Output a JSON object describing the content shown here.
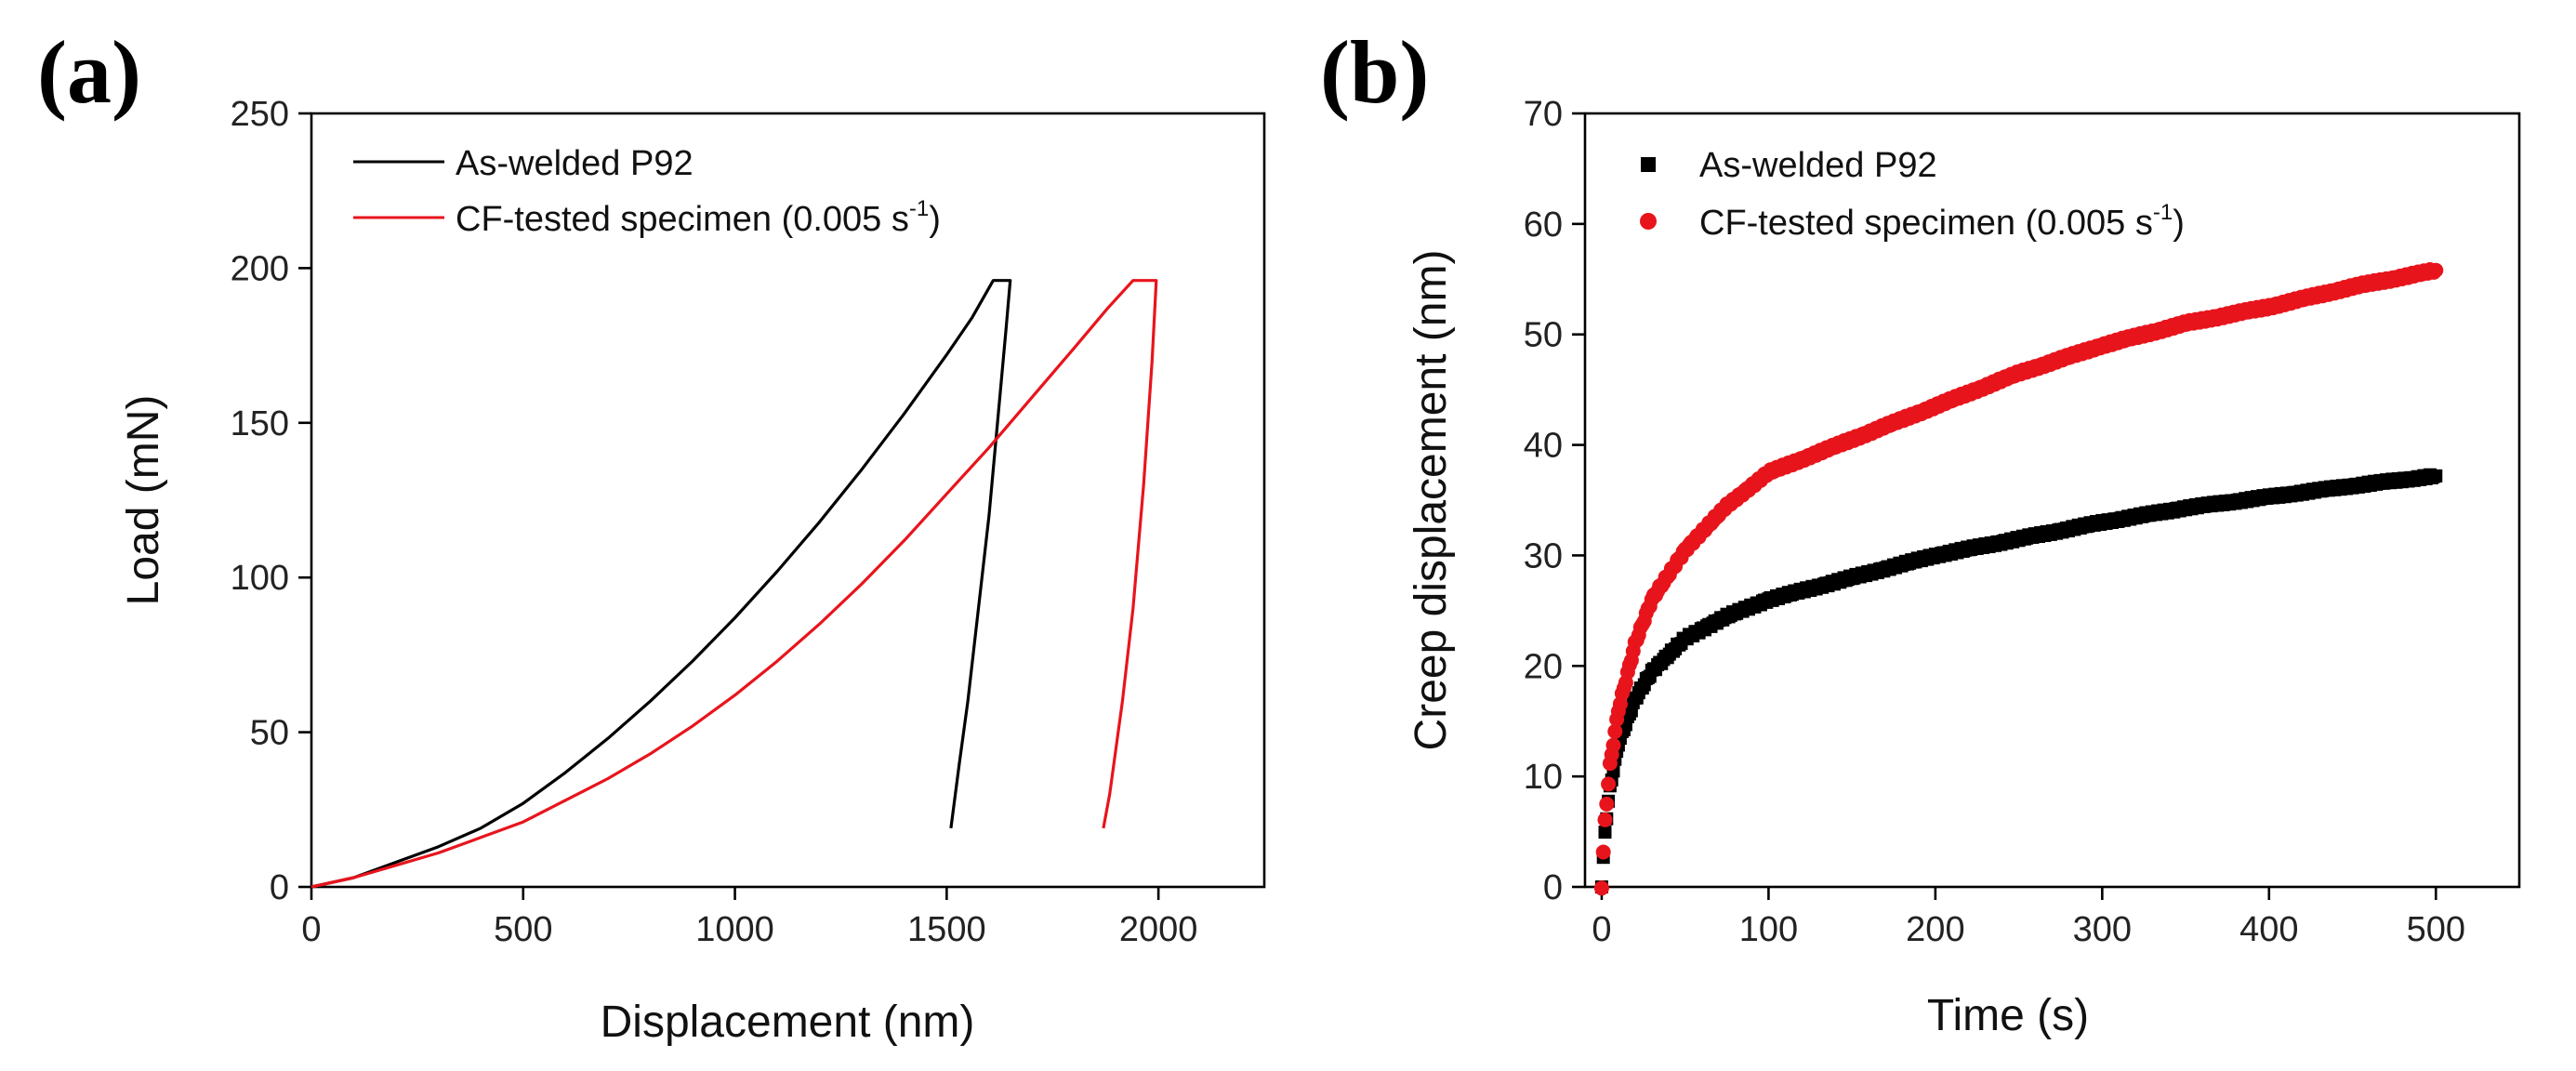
{
  "chart_data": [
    {
      "panel": "(a)",
      "type": "line",
      "title": "",
      "xlabel": "Displacement (nm)",
      "ylabel": "Load (mN)",
      "xlim": [
        0,
        2250
      ],
      "ylim": [
        0,
        250
      ],
      "xticks": [
        0,
        500,
        1000,
        1500,
        2000
      ],
      "yticks": [
        0,
        50,
        100,
        150,
        200,
        250
      ],
      "grid": false,
      "legend_position": "top-left",
      "series": [
        {
          "name": "As-welded P92",
          "color": "#000000",
          "points": [
            [
              0,
              0
            ],
            [
              100,
              3
            ],
            [
              200,
              8
            ],
            [
              300,
              13
            ],
            [
              400,
              19
            ],
            [
              500,
              27
            ],
            [
              600,
              37
            ],
            [
              700,
              48
            ],
            [
              800,
              60
            ],
            [
              900,
              73
            ],
            [
              1000,
              87
            ],
            [
              1100,
              102
            ],
            [
              1200,
              118
            ],
            [
              1300,
              135
            ],
            [
              1400,
              153
            ],
            [
              1500,
              172
            ],
            [
              1560,
              184
            ],
            [
              1610,
              196
            ],
            [
              1650,
              196
            ],
            [
              1640,
              180
            ],
            [
              1620,
              150
            ],
            [
              1600,
              120
            ],
            [
              1575,
              90
            ],
            [
              1550,
              60
            ],
            [
              1530,
              40
            ],
            [
              1510,
              19
            ]
          ]
        },
        {
          "name": "CF-tested specimen (0.005 s",
          "name_sup": "-1",
          "name_suffix": ")",
          "color": "#e8141c",
          "points": [
            [
              0,
              0
            ],
            [
              100,
              3
            ],
            [
              200,
              7
            ],
            [
              300,
              11
            ],
            [
              400,
              16
            ],
            [
              500,
              21
            ],
            [
              600,
              28
            ],
            [
              700,
              35
            ],
            [
              800,
              43
            ],
            [
              900,
              52
            ],
            [
              1000,
              62
            ],
            [
              1100,
              73
            ],
            [
              1200,
              85
            ],
            [
              1300,
              98
            ],
            [
              1400,
              112
            ],
            [
              1500,
              127
            ],
            [
              1600,
              142
            ],
            [
              1700,
              158
            ],
            [
              1800,
              174
            ],
            [
              1880,
              187
            ],
            [
              1940,
              196
            ],
            [
              1995,
              196
            ],
            [
              1985,
              170
            ],
            [
              1965,
              130
            ],
            [
              1940,
              90
            ],
            [
              1915,
              60
            ],
            [
              1885,
              30
            ],
            [
              1870,
              19
            ]
          ]
        }
      ]
    },
    {
      "panel": "(b)",
      "type": "scatter",
      "title": "",
      "xlabel": "Time (s)",
      "ylabel": "Creep displacement (nm)",
      "xlim": [
        -10,
        550
      ],
      "ylim": [
        0,
        70
      ],
      "xticks": [
        0,
        100,
        200,
        300,
        400,
        500
      ],
      "yticks": [
        0,
        10,
        20,
        30,
        40,
        50,
        60,
        70
      ],
      "grid": false,
      "legend_position": "top-left",
      "series": [
        {
          "name": "As-welded P92",
          "color": "#000000",
          "marker": "square",
          "points": [
            [
              0,
              0
            ],
            [
              2,
              5
            ],
            [
              5,
              9
            ],
            [
              10,
              13
            ],
            [
              20,
              17
            ],
            [
              30,
              19.5
            ],
            [
              50,
              22.5
            ],
            [
              75,
              24.5
            ],
            [
              100,
              26
            ],
            [
              125,
              27
            ],
            [
              150,
              28
            ],
            [
              200,
              30
            ],
            [
              250,
              31.5
            ],
            [
              300,
              33
            ],
            [
              350,
              34.3
            ],
            [
              400,
              35.3
            ],
            [
              450,
              36.3
            ],
            [
              500,
              37.2
            ]
          ]
        },
        {
          "name": "CF-tested specimen (0.005 s",
          "name_sup": "-1",
          "name_suffix": ")",
          "color": "#e8141c",
          "marker": "circle",
          "points": [
            [
              0,
              0
            ],
            [
              2,
              6
            ],
            [
              5,
              11
            ],
            [
              10,
              16
            ],
            [
              20,
              22
            ],
            [
              30,
              26
            ],
            [
              50,
              30.5
            ],
            [
              75,
              34.5
            ],
            [
              100,
              37.5
            ],
            [
              125,
              39
            ],
            [
              150,
              40.5
            ],
            [
              200,
              43.5
            ],
            [
              250,
              46.5
            ],
            [
              300,
              49
            ],
            [
              350,
              51
            ],
            [
              400,
              52.5
            ],
            [
              450,
              54.3
            ],
            [
              500,
              55.8
            ]
          ]
        }
      ]
    }
  ]
}
